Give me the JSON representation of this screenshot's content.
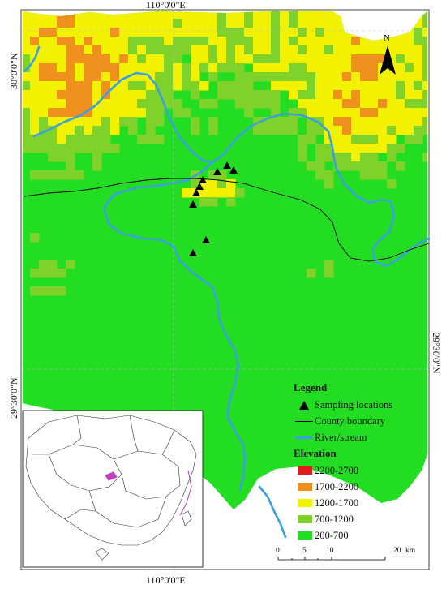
{
  "map": {
    "coords": {
      "top_lon": "110°0'0\"E",
      "bottom_lon": "110°0'0\"E",
      "left_lat_top": "30°0'0\"N",
      "left_lat_bottom": "29°30'0\"N",
      "right_lat": "29°30'0\"N"
    },
    "north_label": "N",
    "legend": {
      "title": "Legend",
      "sampling": "Sampling locations",
      "county": "County boundary",
      "river": "River/stream",
      "elevation_title": "Elevation",
      "classes": [
        {
          "label": "2200-2700",
          "color": "#e31a1c"
        },
        {
          "label": "1700-2200",
          "color": "#ef8f1c"
        },
        {
          "label": "1200-1700",
          "color": "#f2f200"
        },
        {
          "label": "700-1200",
          "color": "#7fd22a"
        },
        {
          "label": "200-700",
          "color": "#22dd22"
        }
      ]
    },
    "scale": {
      "ticks": [
        "0",
        "5",
        "10",
        "20"
      ],
      "unit": "km"
    },
    "colors": {
      "river": "#3aa0e0",
      "inset_outline": "#333333",
      "inset_highlight": "#c040c0"
    }
  }
}
